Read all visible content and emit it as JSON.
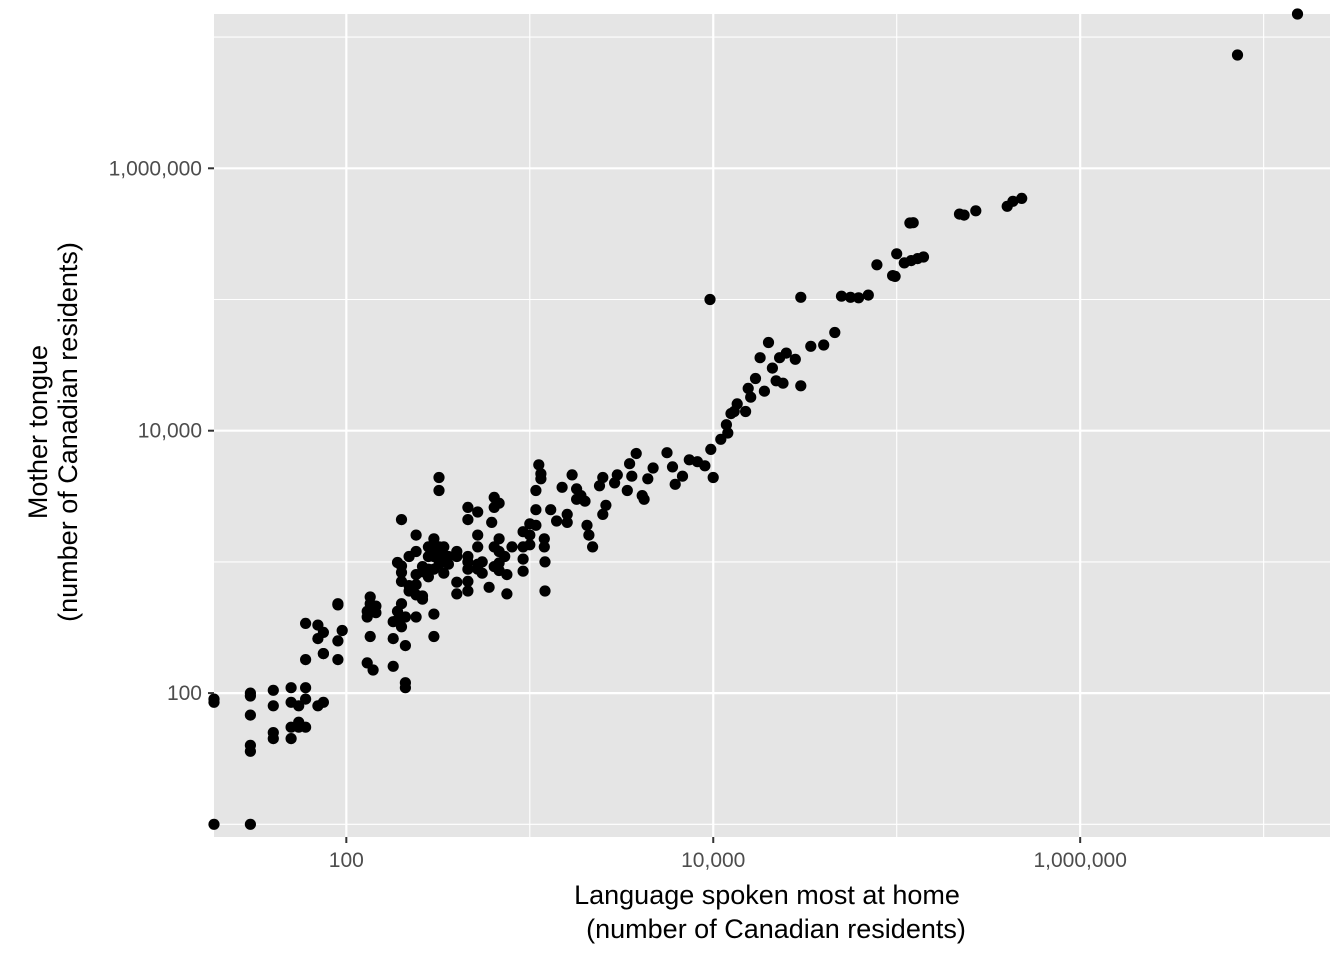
{
  "chart_data": {
    "type": "scatter",
    "title": "",
    "xlabel_lines": [
      "Language spoken most at home",
      "(number of Canadian residents)"
    ],
    "ylabel_lines": [
      "Mother tongue",
      "(number of Canadian residents)"
    ],
    "x_scale": "log10",
    "y_scale": "log10",
    "xlim": [
      19,
      23000000
    ],
    "ylim": [
      8,
      15000000
    ],
    "x_ticks": [
      100,
      10000,
      1000000
    ],
    "x_tick_labels": [
      "100",
      "10,000",
      "1,000,000"
    ],
    "y_ticks": [
      100,
      10000,
      1000000
    ],
    "y_tick_labels": [
      "100",
      "10,000",
      "1,000,000"
    ],
    "grid": true,
    "legend": "none",
    "panel_color": "#e5e5e5",
    "grid_color": "#ffffff",
    "point_color": "#000000",
    "points": [
      [
        19,
        90
      ],
      [
        19,
        85
      ],
      [
        19,
        10
      ],
      [
        30,
        100
      ],
      [
        30,
        95
      ],
      [
        30,
        68
      ],
      [
        30,
        40
      ],
      [
        30,
        36
      ],
      [
        30,
        10
      ],
      [
        40,
        105
      ],
      [
        40,
        80
      ],
      [
        40,
        50
      ],
      [
        40,
        45
      ],
      [
        50,
        110
      ],
      [
        50,
        85
      ],
      [
        50,
        55
      ],
      [
        50,
        45
      ],
      [
        55,
        80
      ],
      [
        55,
        60
      ],
      [
        55,
        55
      ],
      [
        60,
        340
      ],
      [
        60,
        180
      ],
      [
        60,
        110
      ],
      [
        60,
        90
      ],
      [
        60,
        55
      ],
      [
        70,
        330
      ],
      [
        70,
        260
      ],
      [
        70,
        80
      ],
      [
        75,
        290
      ],
      [
        75,
        200
      ],
      [
        75,
        200
      ],
      [
        75,
        85
      ],
      [
        90,
        480
      ],
      [
        90,
        470
      ],
      [
        90,
        250
      ],
      [
        90,
        180
      ],
      [
        95,
        300
      ],
      [
        130,
        420
      ],
      [
        130,
        380
      ],
      [
        130,
        170
      ],
      [
        135,
        540
      ],
      [
        135,
        480
      ],
      [
        135,
        270
      ],
      [
        140,
        150
      ],
      [
        145,
        410
      ],
      [
        145,
        460
      ],
      [
        180,
        350
      ],
      [
        180,
        260
      ],
      [
        180,
        160
      ],
      [
        190,
        990
      ],
      [
        190,
        420
      ],
      [
        190,
        360
      ],
      [
        200,
        2100
      ],
      [
        200,
        930
      ],
      [
        200,
        830
      ],
      [
        200,
        710
      ],
      [
        200,
        480
      ],
      [
        200,
        320
      ],
      [
        210,
        380
      ],
      [
        210,
        230
      ],
      [
        210,
        120
      ],
      [
        210,
        110
      ],
      [
        220,
        1100
      ],
      [
        220,
        660
      ],
      [
        220,
        600
      ],
      [
        240,
        1600
      ],
      [
        240,
        1200
      ],
      [
        240,
        800
      ],
      [
        240,
        670
      ],
      [
        240,
        560
      ],
      [
        240,
        380
      ],
      [
        260,
        920
      ],
      [
        260,
        840
      ],
      [
        260,
        550
      ],
      [
        260,
        520
      ],
      [
        280,
        1300
      ],
      [
        280,
        1100
      ],
      [
        280,
        880
      ],
      [
        280,
        770
      ],
      [
        300,
        1500
      ],
      [
        300,
        1300
      ],
      [
        300,
        1100
      ],
      [
        300,
        880
      ],
      [
        300,
        400
      ],
      [
        300,
        270
      ],
      [
        320,
        4400
      ],
      [
        320,
        3500
      ],
      [
        320,
        1300
      ],
      [
        320,
        1100
      ],
      [
        320,
        960
      ],
      [
        340,
        1300
      ],
      [
        340,
        1100
      ],
      [
        340,
        1000
      ],
      [
        340,
        820
      ],
      [
        360,
        1100
      ],
      [
        360,
        960
      ],
      [
        400,
        1200
      ],
      [
        400,
        1100
      ],
      [
        400,
        700
      ],
      [
        400,
        570
      ],
      [
        460,
        2600
      ],
      [
        460,
        2100
      ],
      [
        460,
        1100
      ],
      [
        460,
        1000
      ],
      [
        460,
        880
      ],
      [
        460,
        710
      ],
      [
        460,
        600
      ],
      [
        520,
        2400
      ],
      [
        520,
        1600
      ],
      [
        520,
        1300
      ],
      [
        520,
        960
      ],
      [
        520,
        880
      ],
      [
        550,
        1000
      ],
      [
        550,
        820
      ],
      [
        600,
        640
      ],
      [
        620,
        2000
      ],
      [
        640,
        3100
      ],
      [
        640,
        2600
      ],
      [
        640,
        1300
      ],
      [
        640,
        920
      ],
      [
        680,
        2800
      ],
      [
        680,
        1500
      ],
      [
        680,
        1200
      ],
      [
        680,
        980
      ],
      [
        680,
        860
      ],
      [
        730,
        1100
      ],
      [
        750,
        800
      ],
      [
        750,
        570
      ],
      [
        800,
        1300
      ],
      [
        920,
        1700
      ],
      [
        920,
        1300
      ],
      [
        920,
        1050
      ],
      [
        920,
        850
      ],
      [
        1000,
        1950
      ],
      [
        1000,
        1600
      ],
      [
        1000,
        1350
      ],
      [
        1080,
        3500
      ],
      [
        1080,
        2500
      ],
      [
        1080,
        1900
      ],
      [
        1120,
        5500
      ],
      [
        1150,
        4700
      ],
      [
        1150,
        4300
      ],
      [
        1200,
        1500
      ],
      [
        1200,
        1300
      ],
      [
        1210,
        1000
      ],
      [
        1210,
        600
      ],
      [
        1300,
        2500
      ],
      [
        1400,
        2050
      ],
      [
        1500,
        3700
      ],
      [
        1600,
        2300
      ],
      [
        1600,
        2000
      ],
      [
        1700,
        4600
      ],
      [
        1800,
        3600
      ],
      [
        1800,
        3000
      ],
      [
        1900,
        3200
      ],
      [
        2000,
        2900
      ],
      [
        2050,
        1900
      ],
      [
        2100,
        1600
      ],
      [
        2200,
        1300
      ],
      [
        2400,
        3800
      ],
      [
        2500,
        4400
      ],
      [
        2500,
        2300
      ],
      [
        2600,
        2700
      ],
      [
        2900,
        4000
      ],
      [
        3000,
        4600
      ],
      [
        3400,
        3500
      ],
      [
        3500,
        5600
      ],
      [
        3600,
        4500
      ],
      [
        3800,
        6700
      ],
      [
        4100,
        3200
      ],
      [
        4200,
        3000
      ],
      [
        4400,
        4300
      ],
      [
        4700,
        5200
      ],
      [
        5600,
        6800
      ],
      [
        6000,
        5300
      ],
      [
        6200,
        3900
      ],
      [
        6800,
        4500
      ],
      [
        7400,
        6000
      ],
      [
        8200,
        5800
      ],
      [
        9000,
        5400
      ],
      [
        9600,
        100000
      ],
      [
        9700,
        7200
      ],
      [
        10000,
        4400
      ],
      [
        11000,
        8600
      ],
      [
        11800,
        11100
      ],
      [
        12000,
        9600
      ],
      [
        12500,
        13500
      ],
      [
        13000,
        14000
      ],
      [
        13500,
        16000
      ],
      [
        15000,
        14000
      ],
      [
        15500,
        21000
      ],
      [
        16000,
        18000
      ],
      [
        17000,
        25000
      ],
      [
        18000,
        36000
      ],
      [
        19000,
        20000
      ],
      [
        20000,
        47000
      ],
      [
        21000,
        30000
      ],
      [
        22000,
        24000
      ],
      [
        23000,
        36000
      ],
      [
        24000,
        23000
      ],
      [
        25000,
        39000
      ],
      [
        28000,
        35000
      ],
      [
        30000,
        104000
      ],
      [
        30000,
        22000
      ],
      [
        34000,
        44000
      ],
      [
        40000,
        45000
      ],
      [
        46000,
        56000
      ],
      [
        50000,
        106000
      ],
      [
        56000,
        104000
      ],
      [
        62000,
        103000
      ],
      [
        70000,
        108000
      ],
      [
        78000,
        184000
      ],
      [
        95000,
        152000
      ],
      [
        98000,
        150000
      ],
      [
        100000,
        223000
      ],
      [
        110000,
        190000
      ],
      [
        120000,
        198000
      ],
      [
        118000,
        383000
      ],
      [
        123000,
        385000
      ],
      [
        130000,
        205000
      ],
      [
        140000,
        211000
      ],
      [
        220000,
        448000
      ],
      [
        233000,
        440000
      ],
      [
        270000,
        474000
      ],
      [
        400000,
        513000
      ],
      [
        430000,
        560000
      ],
      [
        480000,
        590000
      ],
      [
        7200000,
        7300000
      ],
      [
        15300000,
        19500000
      ]
    ]
  }
}
